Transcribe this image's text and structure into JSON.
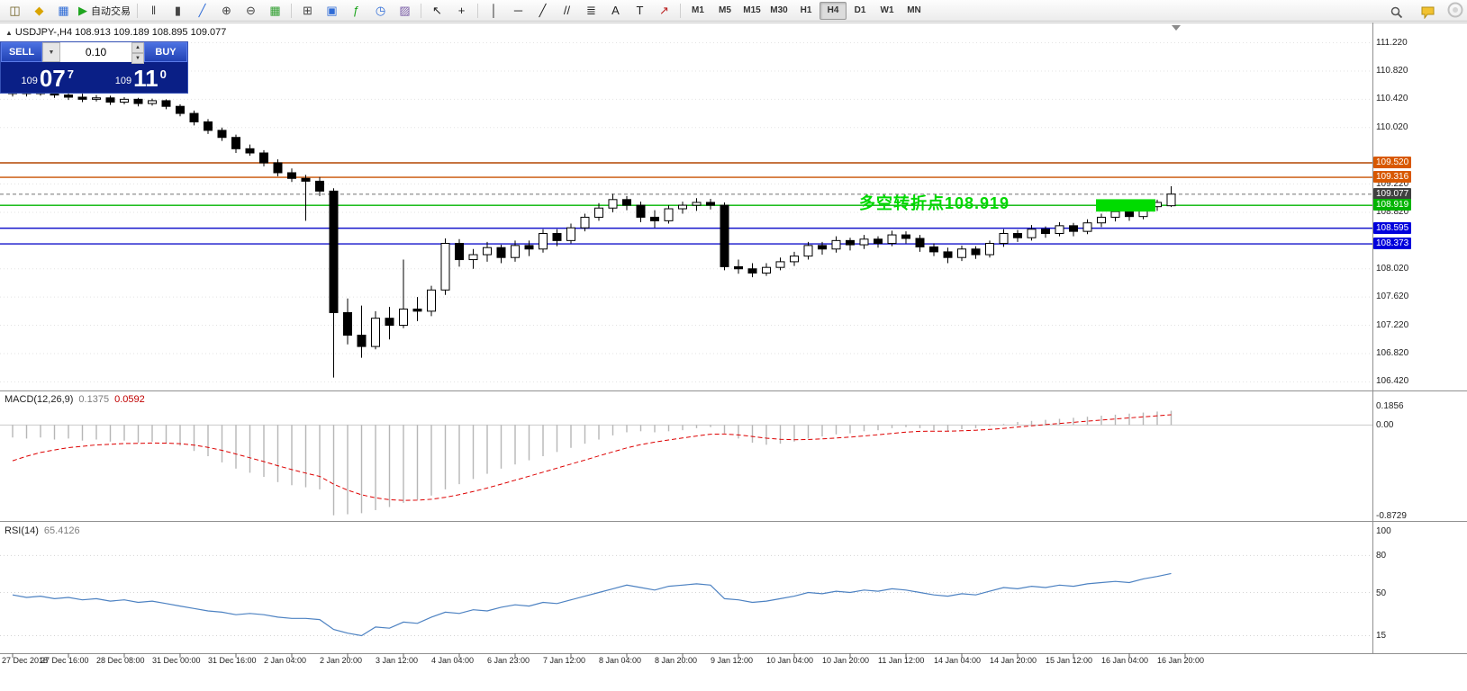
{
  "toolbar": {
    "groups": [
      {
        "items": [
          {
            "name": "new-order-icon",
            "glyph": "◫",
            "color": "#6b5b1e"
          },
          {
            "name": "profiles-icon",
            "glyph": "◆",
            "color": "#d9a400"
          },
          {
            "name": "charts-icon",
            "glyph": "▦",
            "color": "#2e6bd6"
          },
          {
            "name": "autotrading-button",
            "glyph": "▶",
            "color": "#1fa51f",
            "label": "自动交易"
          }
        ]
      },
      {
        "items": [
          {
            "name": "bar-chart-icon",
            "glyph": "‖",
            "color": "#444444"
          },
          {
            "name": "candlestick-icon",
            "glyph": "▮",
            "color": "#444444"
          },
          {
            "name": "line-chart-icon",
            "glyph": "╱",
            "color": "#2e6bd6"
          },
          {
            "name": "zoom-in-icon",
            "glyph": "⊕",
            "color": "#444444"
          },
          {
            "name": "zoom-out-icon",
            "glyph": "⊖",
            "color": "#444444"
          },
          {
            "name": "tile-windows-icon",
            "glyph": "▦",
            "color": "#2e9e2e"
          }
        ]
      },
      {
        "items": [
          {
            "name": "new-chart-icon",
            "glyph": "⊞",
            "color": "#444444"
          },
          {
            "name": "chart-window-icon",
            "glyph": "▣",
            "color": "#2e6bd6"
          },
          {
            "name": "indicators-icon",
            "glyph": "ƒ",
            "color": "#1fa51f"
          },
          {
            "name": "periods-icon",
            "glyph": "◷",
            "color": "#2e6bd6"
          },
          {
            "name": "templates-icon",
            "glyph": "▨",
            "color": "#7b5ea7"
          }
        ]
      },
      {
        "items": [
          {
            "name": "cursor-icon",
            "glyph": "↖",
            "color": "#222222"
          },
          {
            "name": "crosshair-icon",
            "glyph": "+",
            "color": "#222222"
          }
        ]
      },
      {
        "items": [
          {
            "name": "vertical-line-icon",
            "glyph": "│",
            "color": "#222222"
          },
          {
            "name": "horizontal-line-icon",
            "glyph": "─",
            "color": "#222222"
          },
          {
            "name": "trendline-icon",
            "glyph": "╱",
            "color": "#222222"
          },
          {
            "name": "equidistant-channel-icon",
            "glyph": "//",
            "color": "#222222"
          },
          {
            "name": "fibonacci-icon",
            "glyph": "≣",
            "color": "#222222"
          },
          {
            "name": "text-icon",
            "glyph": "A",
            "color": "#222222"
          },
          {
            "name": "text-label-icon",
            "glyph": "T",
            "color": "#222222"
          },
          {
            "name": "arrows-icon",
            "glyph": "↗",
            "color": "#bb2222"
          }
        ]
      }
    ],
    "timeframes": [
      "M1",
      "M5",
      "M15",
      "M30",
      "H1",
      "H4",
      "D1",
      "W1",
      "MN"
    ],
    "active_timeframe": "H4"
  },
  "symbol_line": {
    "marker": "▲",
    "text": "USDJPY-,H4  108.913 109.189 108.895 109.077"
  },
  "trade_panel": {
    "sell_label": "SELL",
    "buy_label": "BUY",
    "volume": "0.10",
    "dropdown_glyph": "▼",
    "spin_up": "▲",
    "spin_down": "▼",
    "sell_price_prefix": "109",
    "sell_price_main": "07",
    "sell_price_sup": "7",
    "buy_price_prefix": "109",
    "buy_price_main": "11",
    "buy_price_sup": "0"
  },
  "indicators": {
    "macd_name": "MACD(12,26,9)",
    "macd_value": "0.1375",
    "macd_signal": "0.0592",
    "rsi_name": "RSI(14)",
    "rsi_value": "65.4126"
  },
  "annotation": {
    "text": "多空转折点108.919",
    "color": "#00d800"
  },
  "price_axis": {
    "labels": [
      "111.220",
      "110.820",
      "110.420",
      "110.020",
      "109.220",
      "108.820",
      "108.020",
      "107.620",
      "107.220",
      "106.820",
      "106.420"
    ]
  },
  "macd_axis": [
    "0.1856",
    "0.00",
    "-0.8729"
  ],
  "rsi_axis": [
    "100",
    "80",
    "50",
    "15"
  ],
  "time_axis": [
    "27 Dec 2018",
    "27 Dec 16:00",
    "28 Dec 08:00",
    "31 Dec 00:00",
    "31 Dec 16:00",
    "2 Jan 04:00",
    "2 Jan 20:00",
    "3 Jan 12:00",
    "4 Jan 04:00",
    "6 Jan 23:00",
    "7 Jan 12:00",
    "8 Jan 04:00",
    "8 Jan 20:00",
    "9 Jan 12:00",
    "10 Jan 04:00",
    "10 Jan 20:00",
    "11 Jan 12:00",
    "14 Jan 04:00",
    "14 Jan 20:00",
    "15 Jan 12:00",
    "16 Jan 04:00",
    "16 Jan 20:00"
  ],
  "chart_data": {
    "type": "candlestick",
    "symbol": "USDJPY-",
    "timeframe": "H4",
    "last_bar": {
      "open": 108.913,
      "high": 109.189,
      "low": 108.895,
      "close": 109.077
    },
    "ylim": [
      106.3,
      111.51
    ],
    "ohlc": [
      [
        110.5,
        110.58,
        110.46,
        110.54
      ],
      [
        110.54,
        110.57,
        110.46,
        110.5
      ],
      [
        110.5,
        110.56,
        110.47,
        110.52
      ],
      [
        110.52,
        110.55,
        110.44,
        110.48
      ],
      [
        110.48,
        110.52,
        110.41,
        110.45
      ],
      [
        110.45,
        110.5,
        110.38,
        110.42
      ],
      [
        110.42,
        110.48,
        110.39,
        110.44
      ],
      [
        110.44,
        110.47,
        110.34,
        110.38
      ],
      [
        110.38,
        110.45,
        110.35,
        110.42
      ],
      [
        110.42,
        110.44,
        110.32,
        110.36
      ],
      [
        110.36,
        110.43,
        110.33,
        110.4
      ],
      [
        110.4,
        110.42,
        110.28,
        110.32
      ],
      [
        110.32,
        110.35,
        110.18,
        110.22
      ],
      [
        110.22,
        110.26,
        110.05,
        110.1
      ],
      [
        110.1,
        110.14,
        109.93,
        109.98
      ],
      [
        109.98,
        110.02,
        109.83,
        109.88
      ],
      [
        109.88,
        109.92,
        109.66,
        109.72
      ],
      [
        109.72,
        109.78,
        109.62,
        109.66
      ],
      [
        109.66,
        109.7,
        109.47,
        109.52
      ],
      [
        109.52,
        109.57,
        109.33,
        109.38
      ],
      [
        109.38,
        109.44,
        109.25,
        109.3
      ],
      [
        109.3,
        109.35,
        108.7,
        109.26
      ],
      [
        109.26,
        109.32,
        109.05,
        109.12
      ],
      [
        109.12,
        109.16,
        106.48,
        107.4
      ],
      [
        107.4,
        107.6,
        106.95,
        107.08
      ],
      [
        107.08,
        107.5,
        106.76,
        106.92
      ],
      [
        106.92,
        107.42,
        106.88,
        107.32
      ],
      [
        107.32,
        107.48,
        107.02,
        107.22
      ],
      [
        107.22,
        108.15,
        107.18,
        107.45
      ],
      [
        107.45,
        107.62,
        107.28,
        107.42
      ],
      [
        107.42,
        107.78,
        107.35,
        107.72
      ],
      [
        107.72,
        108.45,
        107.65,
        108.38
      ],
      [
        108.38,
        108.44,
        108.05,
        108.15
      ],
      [
        108.15,
        108.3,
        108.02,
        108.22
      ],
      [
        108.22,
        108.4,
        108.12,
        108.32
      ],
      [
        108.32,
        108.36,
        108.1,
        108.18
      ],
      [
        108.18,
        108.42,
        108.12,
        108.35
      ],
      [
        108.35,
        108.42,
        108.2,
        108.3
      ],
      [
        108.3,
        108.58,
        108.25,
        108.52
      ],
      [
        108.52,
        108.58,
        108.34,
        108.42
      ],
      [
        108.42,
        108.66,
        108.38,
        108.6
      ],
      [
        108.6,
        108.8,
        108.55,
        108.75
      ],
      [
        108.75,
        108.95,
        108.7,
        108.88
      ],
      [
        108.88,
        109.08,
        108.82,
        109.0
      ],
      [
        109.0,
        109.05,
        108.85,
        108.92
      ],
      [
        108.92,
        108.97,
        108.68,
        108.75
      ],
      [
        108.75,
        108.85,
        108.6,
        108.7
      ],
      [
        108.7,
        108.92,
        108.66,
        108.87
      ],
      [
        108.87,
        108.97,
        108.8,
        108.92
      ],
      [
        108.92,
        109.02,
        108.84,
        108.96
      ],
      [
        108.96,
        109.01,
        108.86,
        108.92
      ],
      [
        108.92,
        108.96,
        108.0,
        108.05
      ],
      [
        108.05,
        108.15,
        107.95,
        108.02
      ],
      [
        108.02,
        108.1,
        107.9,
        107.96
      ],
      [
        107.96,
        108.1,
        107.92,
        108.04
      ],
      [
        108.04,
        108.18,
        108.0,
        108.12
      ],
      [
        108.12,
        108.26,
        108.06,
        108.2
      ],
      [
        108.2,
        108.4,
        108.15,
        108.35
      ],
      [
        108.35,
        108.4,
        108.22,
        108.3
      ],
      [
        108.3,
        108.48,
        108.25,
        108.42
      ],
      [
        108.42,
        108.46,
        108.28,
        108.36
      ],
      [
        108.36,
        108.5,
        108.3,
        108.44
      ],
      [
        108.44,
        108.48,
        108.32,
        108.38
      ],
      [
        108.38,
        108.56,
        108.34,
        108.5
      ],
      [
        108.5,
        108.55,
        108.38,
        108.45
      ],
      [
        108.45,
        108.5,
        108.26,
        108.33
      ],
      [
        108.33,
        108.38,
        108.2,
        108.26
      ],
      [
        108.26,
        108.32,
        108.1,
        108.18
      ],
      [
        108.18,
        108.35,
        108.13,
        108.3
      ],
      [
        108.3,
        108.34,
        108.16,
        108.22
      ],
      [
        108.22,
        108.42,
        108.18,
        108.38
      ],
      [
        108.38,
        108.58,
        108.33,
        108.52
      ],
      [
        108.52,
        108.57,
        108.4,
        108.46
      ],
      [
        108.46,
        108.64,
        108.42,
        108.58
      ],
      [
        108.58,
        108.62,
        108.46,
        108.52
      ],
      [
        108.52,
        108.68,
        108.48,
        108.63
      ],
      [
        108.63,
        108.67,
        108.48,
        108.55
      ],
      [
        108.55,
        108.72,
        108.51,
        108.67
      ],
      [
        108.67,
        108.8,
        108.61,
        108.75
      ],
      [
        108.75,
        108.88,
        108.69,
        108.83
      ],
      [
        108.83,
        108.87,
        108.7,
        108.76
      ],
      [
        108.76,
        108.94,
        108.72,
        108.9
      ],
      [
        108.9,
        109.0,
        108.84,
        108.96
      ],
      [
        108.913,
        109.189,
        108.895,
        109.077
      ]
    ],
    "macd": [
      -0.12,
      -0.13,
      -0.12,
      -0.14,
      -0.13,
      -0.15,
      -0.14,
      -0.16,
      -0.15,
      -0.17,
      -0.16,
      -0.18,
      -0.2,
      -0.25,
      -0.3,
      -0.36,
      -0.42,
      -0.46,
      -0.5,
      -0.55,
      -0.58,
      -0.6,
      -0.62,
      -0.87,
      -0.86,
      -0.85,
      -0.82,
      -0.79,
      -0.75,
      -0.72,
      -0.68,
      -0.62,
      -0.57,
      -0.52,
      -0.47,
      -0.42,
      -0.38,
      -0.34,
      -0.3,
      -0.26,
      -0.22,
      -0.18,
      -0.14,
      -0.1,
      -0.07,
      -0.06,
      -0.07,
      -0.06,
      -0.05,
      -0.03,
      -0.02,
      -0.08,
      -0.13,
      -0.17,
      -0.19,
      -0.18,
      -0.16,
      -0.13,
      -0.11,
      -0.09,
      -0.08,
      -0.06,
      -0.05,
      -0.03,
      -0.02,
      -0.03,
      -0.05,
      -0.06,
      -0.04,
      -0.03,
      -0.01,
      0.01,
      0.03,
      0.04,
      0.05,
      0.06,
      0.07,
      0.08,
      0.09,
      0.1,
      0.11,
      0.12,
      0.13,
      0.1375
    ],
    "macd_ylim": [
      -0.8729,
      0.1856
    ],
    "rsi": [
      48,
      46,
      47,
      45,
      46,
      44,
      45,
      43,
      44,
      42,
      43,
      41,
      39,
      37,
      35,
      34,
      32,
      33,
      32,
      30,
      29,
      29,
      28,
      20,
      17,
      15,
      22,
      21,
      26,
      25,
      30,
      34,
      33,
      36,
      35,
      38,
      40,
      39,
      42,
      41,
      44,
      47,
      50,
      53,
      56,
      54,
      52,
      55,
      56,
      57,
      56,
      45,
      44,
      42,
      43,
      45,
      47,
      50,
      49,
      51,
      50,
      52,
      51,
      53,
      52,
      50,
      48,
      47,
      49,
      48,
      51,
      54,
      53,
      55,
      54,
      56,
      55,
      57,
      58,
      59,
      58,
      61,
      63,
      65.41
    ],
    "rsi_levels": [
      80,
      50,
      15
    ],
    "hlines": [
      {
        "price": 109.52,
        "label": "109.520",
        "color": "#b34700",
        "label_bg": "#d85800",
        "style": "solid"
      },
      {
        "price": 109.316,
        "label": "109.316",
        "color": "#c85000",
        "label_bg": "#d85800",
        "style": "solid"
      },
      {
        "price": 109.077,
        "label": "109.077",
        "color": "#9a9a9a",
        "label_bg": "#3f3f3f",
        "style": "dashed"
      },
      {
        "price": 108.919,
        "label": "108.919",
        "color": "#00b400",
        "label_bg": "#00b400",
        "style": "solid"
      },
      {
        "price": 108.595,
        "label": "108.595",
        "color": "#1414cc",
        "label_bg": "#0000dc",
        "style": "solid"
      },
      {
        "price": 108.373,
        "label": "108.373",
        "color": "#1414cc",
        "label_bg": "#0000dc",
        "style": "solid"
      }
    ],
    "rect": {
      "bar_start": 78,
      "bar_end": 82,
      "price_top": 109.005,
      "price_bottom": 108.83,
      "color": "#00dc00"
    }
  }
}
